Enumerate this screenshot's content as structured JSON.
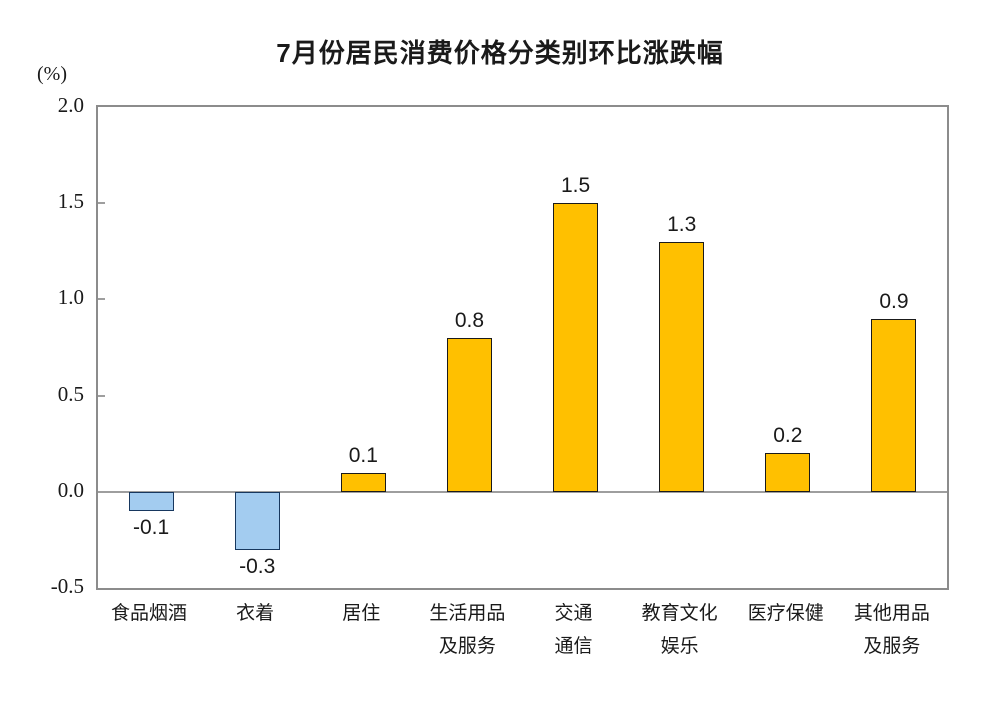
{
  "chart_data": {
    "type": "bar",
    "title": "7月份居民消费价格分类别环比涨跌幅",
    "unit_label": "(%)",
    "xlabel": "",
    "ylabel": "",
    "ylim": [
      -0.5,
      2.0
    ],
    "ytick_labels": [
      "2.0",
      "1.5",
      "1.0",
      "0.5",
      "0.0",
      "-0.5"
    ],
    "grid": false,
    "legend": "none",
    "categories": [
      "食品烟酒",
      "衣着",
      "居住",
      "生活用品及服务",
      "交通通信",
      "教育文化娱乐",
      "医疗保健",
      "其他用品及服务"
    ],
    "category_label_lines": [
      [
        "食品烟酒"
      ],
      [
        "衣着"
      ],
      [
        "居住"
      ],
      [
        "生活用品",
        "及服务"
      ],
      [
        "交通",
        "通信"
      ],
      [
        "教育文化",
        "娱乐"
      ],
      [
        "医疗保健"
      ],
      [
        "其他用品",
        "及服务"
      ]
    ],
    "values": [
      -0.1,
      -0.3,
      0.1,
      0.8,
      1.5,
      1.3,
      0.2,
      0.9
    ],
    "value_labels": [
      "-0.1",
      "-0.3",
      "0.1",
      "0.8",
      "1.5",
      "1.3",
      "0.2",
      "0.9"
    ],
    "colors": {
      "positive_fill": "#FFC000",
      "positive_border": "#1a1a1a",
      "negative_fill": "#A3CCF0",
      "negative_border": "#17375E",
      "axis_border": "#8c8c8c",
      "zero_line": "#9e9e9e",
      "text": "#1a1a1a"
    }
  }
}
